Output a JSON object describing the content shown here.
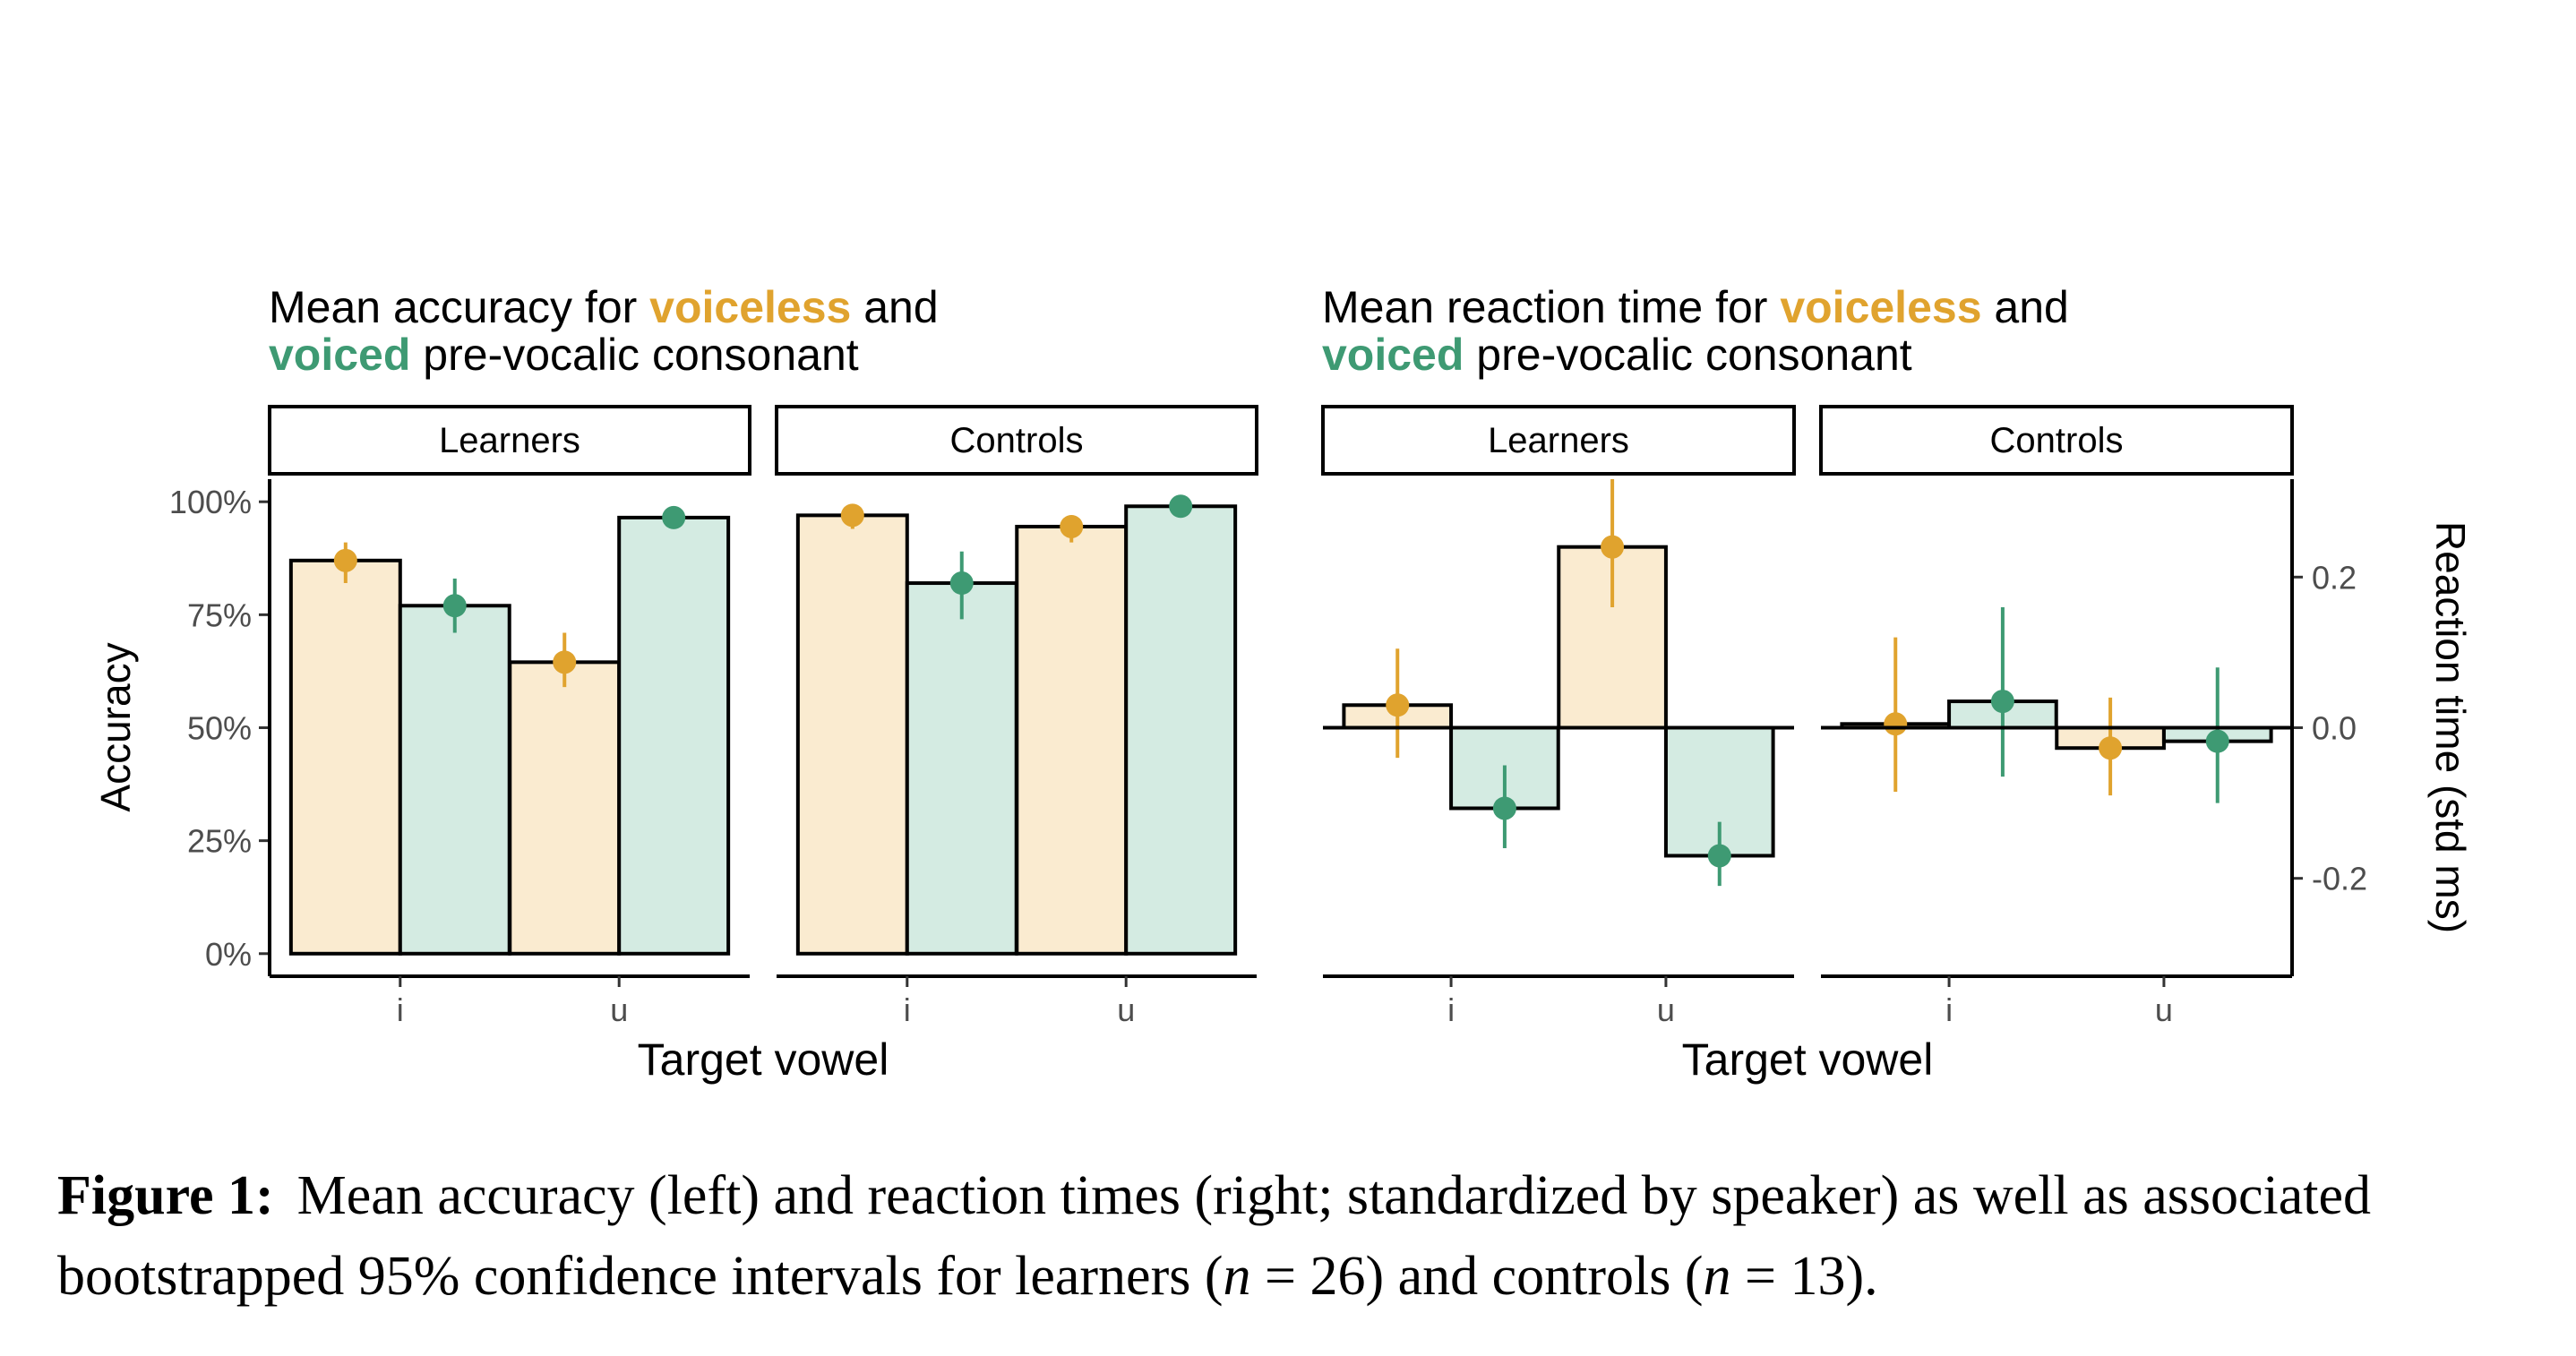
{
  "colors": {
    "voiceless": "#E0A32E",
    "voiceless_fill": "#FAEBD0",
    "voiced": "#3E9A73",
    "voiced_fill": "#D4EBE2"
  },
  "chart_data": [
    {
      "type": "bar",
      "title": {
        "l1_a": "Mean accuracy for ",
        "l1_b": "voiceless",
        "l1_c": " and",
        "l2_a": "voiced",
        "l2_b": " pre-vocalic consonant"
      },
      "xlabel": "Target vowel",
      "ylabel": "Accuracy",
      "ylim": [
        -0.05,
        1.05
      ],
      "yticks": [
        0,
        0.25,
        0.5,
        0.75,
        1.0
      ],
      "ytick_labels": [
        "0%",
        "25%",
        "50%",
        "75%",
        "100%"
      ],
      "panels": [
        {
          "name": "Learners",
          "categories": [
            "i",
            "u"
          ],
          "series": [
            {
              "name": "voiceless",
              "values": [
                0.87,
                0.645
              ],
              "ci": [
                [
                  0.82,
                  0.91
                ],
                [
                  0.59,
                  0.71
                ]
              ]
            },
            {
              "name": "voiced",
              "values": [
                0.77,
                0.965
              ],
              "ci": [
                [
                  0.71,
                  0.83
                ],
                [
                  0.96,
                  0.97
                ]
              ]
            }
          ]
        },
        {
          "name": "Controls",
          "categories": [
            "i",
            "u"
          ],
          "series": [
            {
              "name": "voiceless",
              "values": [
                0.97,
                0.945
              ],
              "ci": [
                [
                  0.94,
                  0.99
                ],
                [
                  0.91,
                  0.97
                ]
              ]
            },
            {
              "name": "voiced",
              "values": [
                0.82,
                0.99
              ],
              "ci": [
                [
                  0.74,
                  0.89
                ],
                [
                  0.98,
                  1.0
                ]
              ]
            }
          ]
        }
      ]
    },
    {
      "type": "bar",
      "title": {
        "l1_a": "Mean reaction time for ",
        "l1_b": "voiceless",
        "l1_c": " and",
        "l2_a": "voiced",
        "l2_b": " pre-vocalic consonant"
      },
      "xlabel": "Target vowel",
      "ylabel": "Reaction time (std ms)",
      "ylim": [
        -0.33,
        0.33
      ],
      "yticks": [
        -0.2,
        0.0,
        0.2
      ],
      "ytick_labels": [
        "-0.2",
        "0.0",
        "0.2"
      ],
      "panels": [
        {
          "name": "Learners",
          "categories": [
            "i",
            "u"
          ],
          "series": [
            {
              "name": "voiceless",
              "values": [
                0.03,
                0.24
              ],
              "ci": [
                [
                  -0.04,
                  0.105
                ],
                [
                  0.16,
                  0.33
                ]
              ]
            },
            {
              "name": "voiced",
              "values": [
                -0.107,
                -0.17
              ],
              "ci": [
                [
                  -0.16,
                  -0.05
                ],
                [
                  -0.21,
                  -0.125
                ]
              ]
            }
          ]
        },
        {
          "name": "Controls",
          "categories": [
            "i",
            "u"
          ],
          "series": [
            {
              "name": "voiceless",
              "values": [
                0.005,
                -0.027
              ],
              "ci": [
                [
                  -0.085,
                  0.12
                ],
                [
                  -0.09,
                  0.04
                ]
              ]
            },
            {
              "name": "voiced",
              "values": [
                0.035,
                -0.018
              ],
              "ci": [
                [
                  -0.065,
                  0.16
                ],
                [
                  -0.1,
                  0.08
                ]
              ]
            }
          ]
        }
      ]
    }
  ],
  "caption": {
    "label": "Figure 1:",
    "text_1": "Mean accuracy (left) and reaction times (right; standardized by speaker) as well as associated bootstrapped 95% confidence intervals for learners (",
    "n_var_1": "n",
    "n_eq_1": " = 26",
    "text_2": ") and controls (",
    "n_var_2": "n",
    "n_eq_2": " = 13",
    "text_3": ")."
  }
}
